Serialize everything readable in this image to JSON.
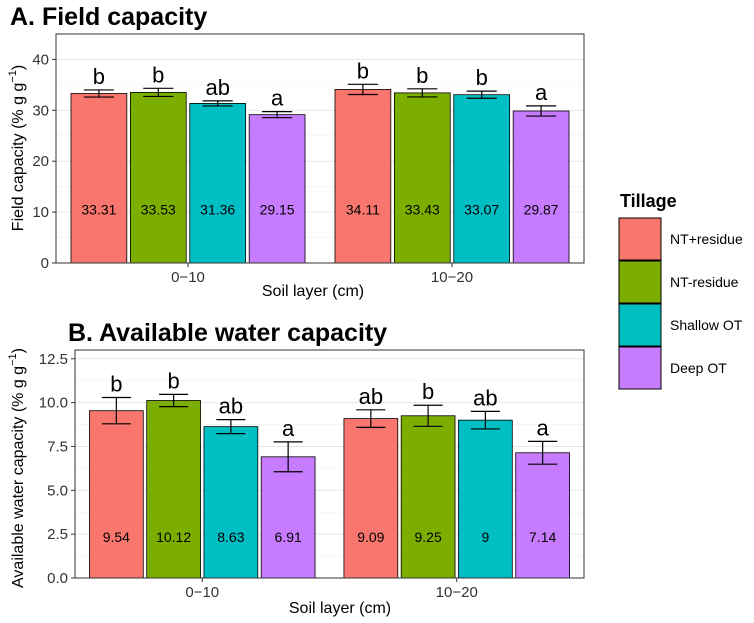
{
  "chart_data": [
    {
      "type": "bar",
      "title": "A. Field capacity",
      "xlabel": "Soil layer (cm)",
      "ylabel": "Field capacity (% g g",
      "ylabel_sup": "−1",
      "ylabel_close": ")",
      "ylim": [
        0,
        45
      ],
      "yticks": [
        "0",
        "10",
        "20",
        "30",
        "40"
      ],
      "ytick_values": [
        0,
        10,
        20,
        30,
        40
      ],
      "categories": [
        "0−10",
        "10−20"
      ],
      "series": [
        {
          "name": "NT+residue",
          "values": [
            33.31,
            34.11
          ],
          "labels": [
            "33.31",
            "34.11"
          ],
          "err": [
            0.7,
            1.0
          ],
          "sig": [
            "b",
            "b"
          ]
        },
        {
          "name": "NT-residue",
          "values": [
            33.53,
            33.43
          ],
          "labels": [
            "33.53",
            "33.43"
          ],
          "err": [
            0.8,
            0.8
          ],
          "sig": [
            "b",
            "b"
          ]
        },
        {
          "name": "Shallow OT",
          "values": [
            31.36,
            33.07
          ],
          "labels": [
            "31.36",
            "33.07"
          ],
          "err": [
            0.5,
            0.7
          ],
          "sig": [
            "ab",
            "b"
          ]
        },
        {
          "name": "Deep OT",
          "values": [
            29.15,
            29.87
          ],
          "labels": [
            "29.15",
            "29.87"
          ],
          "err": [
            0.6,
            1.0
          ],
          "sig": [
            "a",
            "a"
          ]
        }
      ],
      "grid": true
    },
    {
      "type": "bar",
      "title": "B. Available water capacity",
      "xlabel": "Soil layer (cm)",
      "ylabel": "Available water capacity (% g g",
      "ylabel_sup": "−1",
      "ylabel_close": ")",
      "ylim": [
        0,
        13
      ],
      "yticks": [
        "0.0",
        "2.5",
        "5.0",
        "7.5",
        "10.0",
        "12.5"
      ],
      "ytick_values": [
        0,
        2.5,
        5,
        7.5,
        10,
        12.5
      ],
      "categories": [
        "0−10",
        "10−20"
      ],
      "series": [
        {
          "name": "NT+residue",
          "values": [
            9.54,
            9.09
          ],
          "labels": [
            "9.54",
            "9.09"
          ],
          "err": [
            0.75,
            0.5
          ],
          "sig": [
            "b",
            "ab"
          ]
        },
        {
          "name": "NT-residue",
          "values": [
            10.12,
            9.25
          ],
          "labels": [
            "10.12",
            "9.25"
          ],
          "err": [
            0.35,
            0.6
          ],
          "sig": [
            "b",
            "b"
          ]
        },
        {
          "name": "Shallow OT",
          "values": [
            8.63,
            9.0
          ],
          "labels": [
            "8.63",
            "9"
          ],
          "err": [
            0.4,
            0.5
          ],
          "sig": [
            "ab",
            "ab"
          ]
        },
        {
          "name": "Deep OT",
          "values": [
            6.91,
            7.14
          ],
          "labels": [
            "6.91",
            "7.14"
          ],
          "err": [
            0.85,
            0.65
          ],
          "sig": [
            "a",
            "a"
          ]
        }
      ],
      "grid": true
    }
  ],
  "legend": {
    "title": "Tillage",
    "placement": "right",
    "items": [
      {
        "label": "NT+residue",
        "color": "#F8766D"
      },
      {
        "label": "NT-residue",
        "color": "#7CAE00"
      },
      {
        "label": "Shallow OT",
        "color": "#00BFC4"
      },
      {
        "label": "Deep OT",
        "color": "#C77CFF"
      }
    ]
  },
  "colors": [
    "#F8766D",
    "#7CAE00",
    "#00BFC4",
    "#C77CFF"
  ]
}
